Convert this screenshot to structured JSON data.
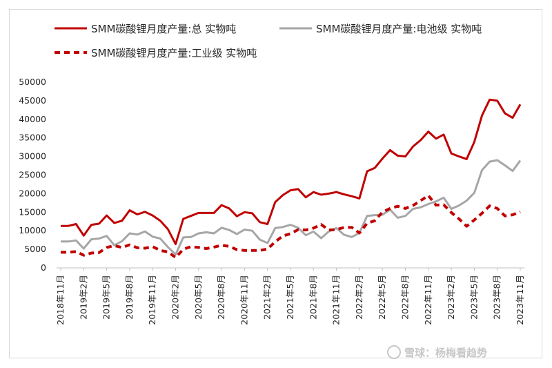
{
  "chart_data": {
    "type": "line",
    "title": "",
    "xlabel": "",
    "ylabel": "",
    "ylim": [
      0,
      50000
    ],
    "yticks": [
      "0",
      "5000",
      "10000",
      "15000",
      "20000",
      "25000",
      "30000",
      "35000",
      "40000",
      "45000",
      "50000"
    ],
    "x": [
      "2018年11月",
      "2018年12月",
      "2019年1月",
      "2019年2月",
      "2019年3月",
      "2019年4月",
      "2019年5月",
      "2019年6月",
      "2019年7月",
      "2019年8月",
      "2019年9月",
      "2019年10月",
      "2019年11月",
      "2019年12月",
      "2020年1月",
      "2020年2月",
      "2020年3月",
      "2020年4月",
      "2020年5月",
      "2020年6月",
      "2020年7月",
      "2020年8月",
      "2020年9月",
      "2020年10月",
      "2020年11月",
      "2020年12月",
      "2021年1月",
      "2021年2月",
      "2021年3月",
      "2021年4月",
      "2021年5月",
      "2021年6月",
      "2021年7月",
      "2021年8月",
      "2021年9月",
      "2021年10月",
      "2021年11月",
      "2021年12月",
      "2022年1月",
      "2022年2月",
      "2022年3月",
      "2022年4月",
      "2022年5月",
      "2022年6月",
      "2022年7月",
      "2022年8月",
      "2022年9月",
      "2022年10月",
      "2022年11月",
      "2022年12月",
      "2023年1月",
      "2023年2月",
      "2023年3月",
      "2023年4月",
      "2023年5月",
      "2023年6月",
      "2023年7月",
      "2023年8月",
      "2023年9月",
      "2023年10月",
      "2023年11月"
    ],
    "xtick_labels": [
      "2018年11月",
      "2019年2月",
      "2019年5月",
      "2019年8月",
      "2019年11月",
      "2020年2月",
      "2020年5月",
      "2020年8月",
      "2020年11月",
      "2021年2月",
      "2021年5月",
      "2021年8月",
      "2021年11月",
      "2022年2月",
      "2022年5月",
      "2022年8月",
      "2022年11月",
      "2023年2月",
      "2023年5月",
      "2023年8月",
      "2023年11月"
    ],
    "legend_position": "top",
    "grid": false,
    "series": [
      {
        "name": "SMM碳酸锂月度产量:总 实物吨",
        "color": "#c00000",
        "style": "solid",
        "values": [
          11300,
          11300,
          11800,
          8700,
          11600,
          11900,
          14100,
          12100,
          12700,
          15500,
          14400,
          15100,
          14100,
          12700,
          10400,
          6400,
          13200,
          14000,
          14800,
          14800,
          14800,
          16900,
          16000,
          13900,
          15000,
          14700,
          12300,
          11800,
          17700,
          19600,
          20900,
          21200,
          19000,
          20400,
          19700,
          20000,
          20400,
          19800,
          19300,
          18700,
          26000,
          26900,
          29400,
          31700,
          30200,
          30000,
          32700,
          34400,
          36700,
          34800,
          35900,
          30800,
          30000,
          29300,
          33900,
          41000,
          45300,
          45000,
          41600,
          40400,
          44000
        ]
      },
      {
        "name": "SMM碳酸锂月度产量:电池级 实物吨",
        "color": "#a6a6a6",
        "style": "solid",
        "values": [
          7100,
          7100,
          7400,
          5200,
          7700,
          7900,
          8600,
          6100,
          7200,
          9300,
          9000,
          9800,
          8400,
          7900,
          5600,
          3600,
          8200,
          8300,
          9300,
          9600,
          9300,
          10800,
          10200,
          9100,
          10300,
          10000,
          7600,
          6700,
          10700,
          11000,
          11600,
          10800,
          8800,
          9800,
          8000,
          9800,
          10700,
          8900,
          8300,
          9400,
          14000,
          14200,
          14300,
          15700,
          13500,
          14000,
          15900,
          16300,
          17200,
          17900,
          18900,
          15900,
          16800,
          18100,
          20200,
          26300,
          28600,
          29000,
          27600,
          26100,
          28900
        ]
      },
      {
        "name": "SMM碳酸锂月度产量:工业级 实物吨",
        "color": "#c00000",
        "style": "dashed",
        "values": [
          4200,
          4200,
          4400,
          3400,
          4000,
          4100,
          5500,
          6000,
          5500,
          6200,
          5400,
          5300,
          5700,
          4700,
          4300,
          2800,
          5000,
          5700,
          5500,
          5200,
          5600,
          6100,
          5800,
          4900,
          4700,
          4700,
          4700,
          5100,
          7000,
          8600,
          9200,
          10300,
          10200,
          10700,
          11700,
          10200,
          10300,
          10900,
          10900,
          9400,
          12000,
          12700,
          15000,
          16000,
          16600,
          16000,
          16800,
          18100,
          19500,
          16900,
          17000,
          14900,
          13200,
          11200,
          12900,
          14700,
          16700,
          16000,
          14000,
          14300,
          15100
        ]
      }
    ]
  },
  "watermark": "雪球：杨梅看趋势"
}
